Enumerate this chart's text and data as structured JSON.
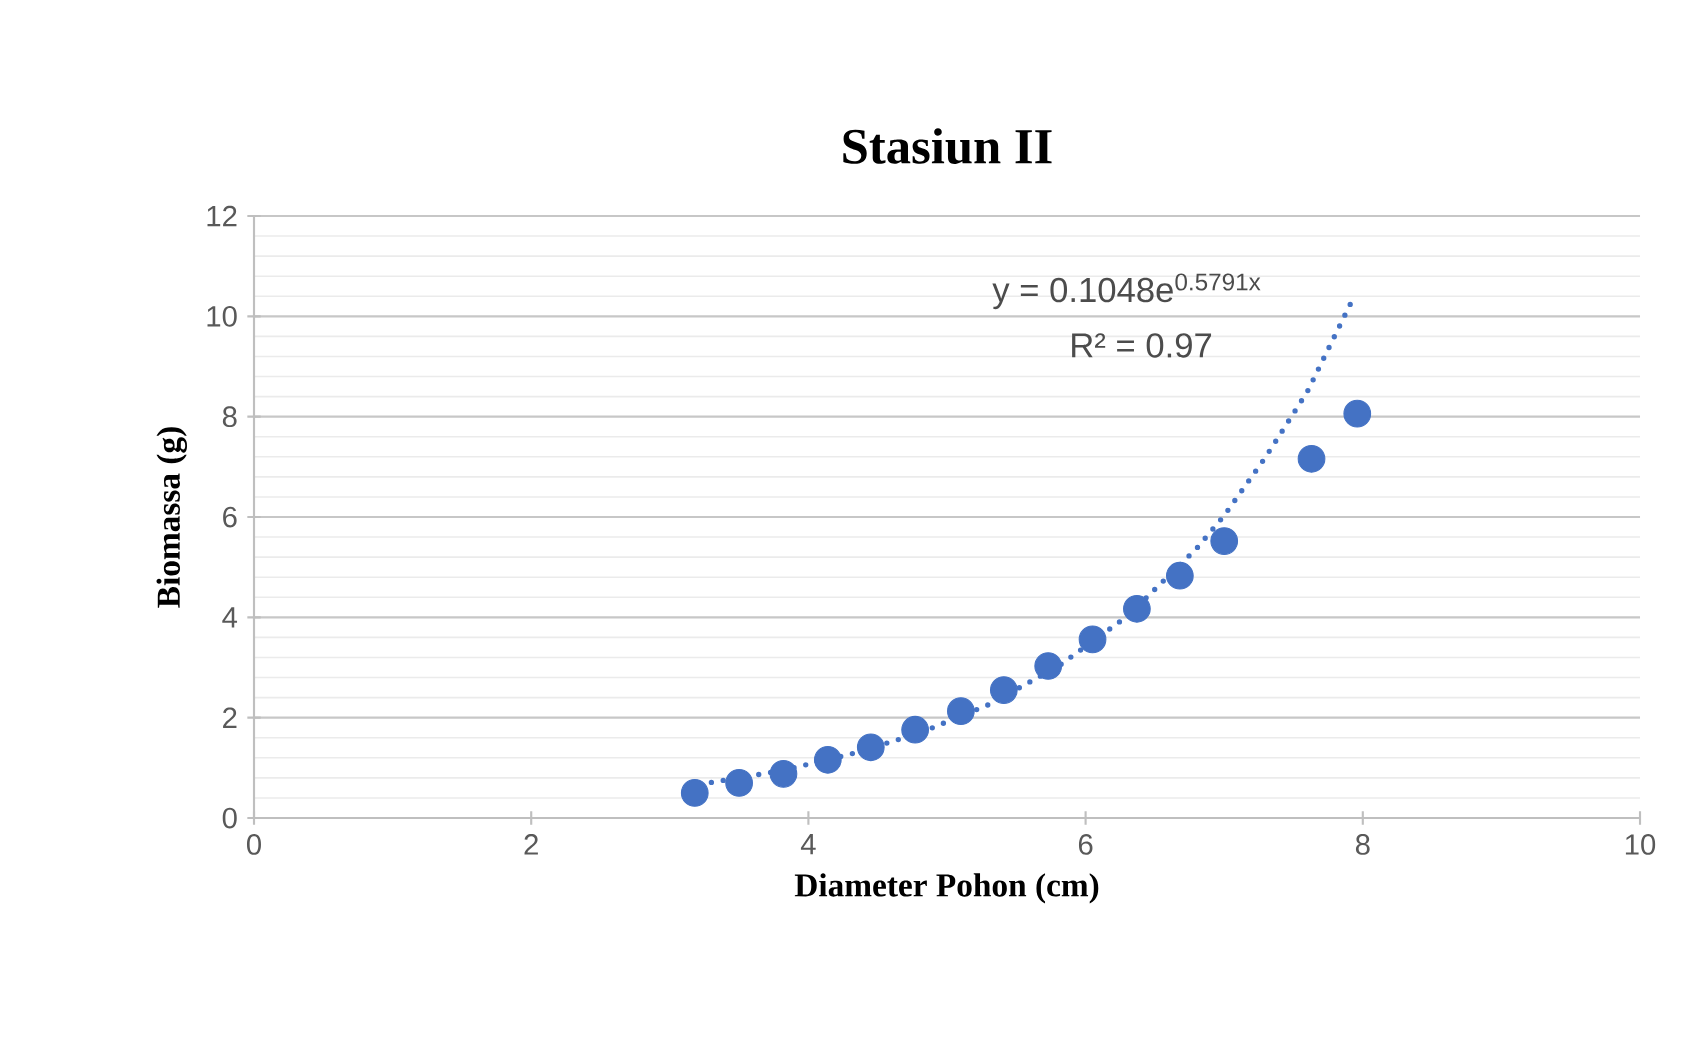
{
  "chart_data": {
    "type": "scatter",
    "title": "Stasiun II",
    "xlabel": "Diameter Pohon (cm)",
    "ylabel": "Biomassa (g)",
    "xlim": [
      0,
      10
    ],
    "xticks": [
      0,
      2,
      4,
      6,
      8,
      10
    ],
    "ylim": [
      0,
      12
    ],
    "yticks": [
      0,
      2,
      4,
      6,
      8,
      10,
      12
    ],
    "grid": "y",
    "marker": "circle",
    "series": [
      {
        "color": "#4472c4",
        "x": [
          3.18,
          3.5,
          3.82,
          4.14,
          4.45,
          4.77,
          5.1,
          5.41,
          5.73,
          6.05,
          6.37,
          6.68,
          7.0,
          7.63,
          7.96
        ],
        "values": [
          0.5,
          0.7,
          0.88,
          1.16,
          1.41,
          1.76,
          2.13,
          2.55,
          3.03,
          3.56,
          4.17,
          4.83,
          5.52,
          7.16,
          8.06
        ]
      },
      {
        "type": "line",
        "color": "#4472c4",
        "line_style": "dotted",
        "marker": "none",
        "x": [
          3.3,
          3.8,
          4.3,
          4.8,
          5.3,
          5.8,
          6.3,
          6.8,
          7.0,
          7.3,
          7.6,
          7.92
        ],
        "values": [
          0.71,
          0.94,
          1.27,
          1.69,
          2.26,
          3.02,
          4.02,
          5.37,
          6.03,
          7.2,
          8.5,
          10.3
        ]
      }
    ],
    "annotations": [
      "y = 0.1048e$^{0.5791x}$",
      "R² = 0.97"
    ]
  }
}
